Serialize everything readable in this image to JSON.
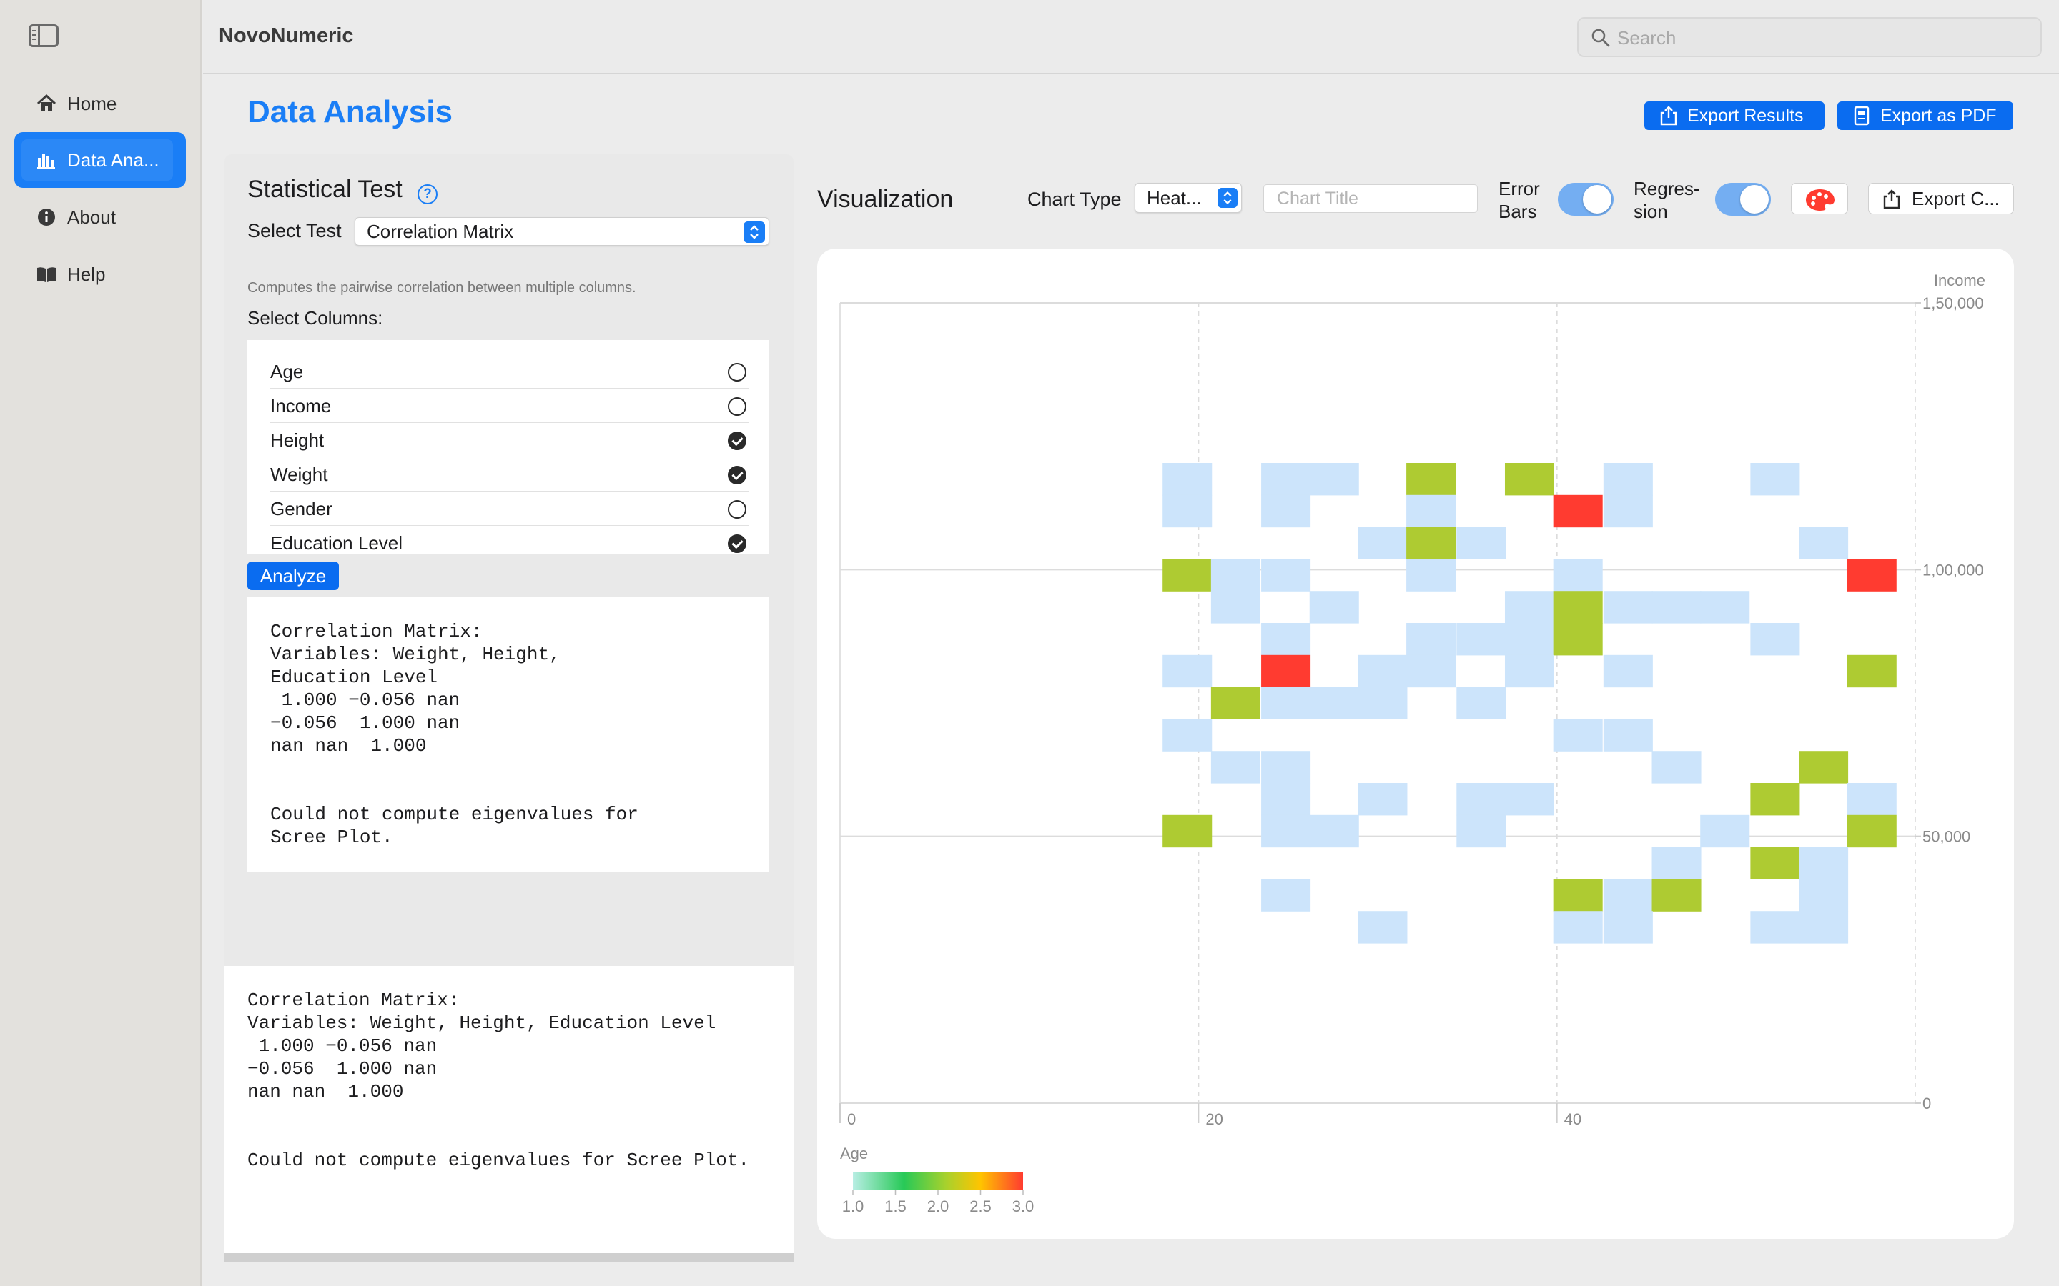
{
  "app": {
    "title": "NovoNumeric"
  },
  "search": {
    "placeholder": "Search"
  },
  "sidebar": {
    "items": [
      {
        "label": "Home",
        "icon": "house-icon"
      },
      {
        "label": "Data Ana...",
        "icon": "bar-chart-icon",
        "active": true
      },
      {
        "label": "About",
        "icon": "info-icon"
      },
      {
        "label": "Help",
        "icon": "book-icon"
      }
    ]
  },
  "header": {
    "title": "Data Analysis",
    "export_results_label": "Export Results",
    "export_pdf_label": "Export as PDF"
  },
  "stat_panel": {
    "heading": "Statistical Test",
    "help_glyph": "?",
    "select_test_label": "Select Test",
    "selected_test": "Correlation Matrix",
    "description": "Computes the pairwise correlation between multiple columns.",
    "select_columns_label": "Select Columns:",
    "columns": [
      {
        "name": "Age",
        "selected": false
      },
      {
        "name": "Income",
        "selected": false
      },
      {
        "name": "Height",
        "selected": true
      },
      {
        "name": "Weight",
        "selected": true
      },
      {
        "name": "Gender",
        "selected": false
      },
      {
        "name": "Education Level",
        "selected": true
      }
    ],
    "analyze_label": "Analyze",
    "result_text": "Correlation Matrix:\nVariables: Weight, Height,\nEducation Level\n 1.000 −0.056 nan\n−0.056  1.000 nan\nnan nan  1.000\n\n\nCould not compute eigenvalues for\nScree Plot.",
    "summary_text": "Correlation Matrix:\nVariables: Weight, Height, Education Level\n 1.000 −0.056 nan\n−0.056  1.000 nan\nnan nan  1.000\n\n\nCould not compute eigenvalues for Scree Plot."
  },
  "viz": {
    "title": "Visualization",
    "chart_type_label": "Chart Type",
    "chart_type_value": "Heat...",
    "chart_title_placeholder": "Chart Title",
    "error_bars_label_1": "Error",
    "error_bars_label_2": "Bars",
    "error_bars_on": true,
    "regression_label_1": "Regres-",
    "regression_label_2": "sion",
    "regression_on": true,
    "export_chart_label": "Export C..."
  },
  "colors": {
    "accent": "#1a7ef6",
    "button_blue": "#0a6cf0",
    "cell_low": "#cce4fb",
    "cell_mid": "#aecb32",
    "cell_high": "#ff3b30"
  },
  "chart_data": {
    "type": "heatmap",
    "title": "",
    "xlabel": "Age",
    "ylabel": "Income",
    "xlim": [
      0,
      60
    ],
    "ylim": [
      0,
      150000
    ],
    "x_ticks": [
      {
        "value": 0,
        "label": "0"
      },
      {
        "value": 20,
        "label": "20"
      },
      {
        "value": 40,
        "label": "40"
      }
    ],
    "y_ticks": [
      {
        "value": 0,
        "label": "0"
      },
      {
        "value": 50000,
        "label": "50,000"
      },
      {
        "value": 100000,
        "label": "1,00,000"
      },
      {
        "value": 150000,
        "label": "1,50,000"
      }
    ],
    "bin_width_x": 2.73,
    "bin_height_y": 6000,
    "colorbar": {
      "min": 1.0,
      "max": 3.0,
      "ticks": [
        "1.0",
        "1.5",
        "2.0",
        "2.5",
        "3.0"
      ]
    },
    "levels": [
      "1",
      "2",
      "3"
    ],
    "cells": [
      {
        "x": 18.0,
        "y": 114000,
        "v": 1
      },
      {
        "x": 23.5,
        "y": 114000,
        "v": 1
      },
      {
        "x": 26.2,
        "y": 114000,
        "v": 1
      },
      {
        "x": 31.6,
        "y": 114000,
        "v": 2
      },
      {
        "x": 37.1,
        "y": 114000,
        "v": 2
      },
      {
        "x": 42.6,
        "y": 114000,
        "v": 1
      },
      {
        "x": 50.8,
        "y": 114000,
        "v": 1
      },
      {
        "x": 18.0,
        "y": 108000,
        "v": 1
      },
      {
        "x": 23.5,
        "y": 108000,
        "v": 1
      },
      {
        "x": 31.6,
        "y": 108000,
        "v": 1
      },
      {
        "x": 39.8,
        "y": 108000,
        "v": 3
      },
      {
        "x": 42.6,
        "y": 108000,
        "v": 1
      },
      {
        "x": 28.9,
        "y": 102000,
        "v": 1
      },
      {
        "x": 31.6,
        "y": 102000,
        "v": 2
      },
      {
        "x": 34.4,
        "y": 102000,
        "v": 1
      },
      {
        "x": 53.5,
        "y": 102000,
        "v": 1
      },
      {
        "x": 18.0,
        "y": 96000,
        "v": 2
      },
      {
        "x": 20.7,
        "y": 96000,
        "v": 1
      },
      {
        "x": 23.5,
        "y": 96000,
        "v": 1
      },
      {
        "x": 31.6,
        "y": 96000,
        "v": 1
      },
      {
        "x": 39.8,
        "y": 96000,
        "v": 1
      },
      {
        "x": 56.2,
        "y": 96000,
        "v": 3
      },
      {
        "x": 20.7,
        "y": 90000,
        "v": 1
      },
      {
        "x": 26.2,
        "y": 90000,
        "v": 1
      },
      {
        "x": 37.1,
        "y": 90000,
        "v": 1
      },
      {
        "x": 39.8,
        "y": 90000,
        "v": 2
      },
      {
        "x": 42.6,
        "y": 90000,
        "v": 1
      },
      {
        "x": 45.3,
        "y": 90000,
        "v": 1
      },
      {
        "x": 48.0,
        "y": 90000,
        "v": 1
      },
      {
        "x": 23.5,
        "y": 84000,
        "v": 1
      },
      {
        "x": 31.6,
        "y": 84000,
        "v": 1
      },
      {
        "x": 34.4,
        "y": 84000,
        "v": 1
      },
      {
        "x": 37.1,
        "y": 84000,
        "v": 1
      },
      {
        "x": 39.8,
        "y": 84000,
        "v": 2
      },
      {
        "x": 50.8,
        "y": 84000,
        "v": 1
      },
      {
        "x": 18.0,
        "y": 78000,
        "v": 1
      },
      {
        "x": 23.5,
        "y": 78000,
        "v": 3
      },
      {
        "x": 28.9,
        "y": 78000,
        "v": 1
      },
      {
        "x": 31.6,
        "y": 78000,
        "v": 1
      },
      {
        "x": 37.1,
        "y": 78000,
        "v": 1
      },
      {
        "x": 42.6,
        "y": 78000,
        "v": 1
      },
      {
        "x": 56.2,
        "y": 78000,
        "v": 2
      },
      {
        "x": 20.7,
        "y": 72000,
        "v": 2
      },
      {
        "x": 23.5,
        "y": 72000,
        "v": 1
      },
      {
        "x": 26.2,
        "y": 72000,
        "v": 1
      },
      {
        "x": 28.9,
        "y": 72000,
        "v": 1
      },
      {
        "x": 34.4,
        "y": 72000,
        "v": 1
      },
      {
        "x": 18.0,
        "y": 66000,
        "v": 1
      },
      {
        "x": 39.8,
        "y": 66000,
        "v": 1
      },
      {
        "x": 42.6,
        "y": 66000,
        "v": 1
      },
      {
        "x": 20.7,
        "y": 60000,
        "v": 1
      },
      {
        "x": 23.5,
        "y": 60000,
        "v": 1
      },
      {
        "x": 45.3,
        "y": 60000,
        "v": 1
      },
      {
        "x": 53.5,
        "y": 60000,
        "v": 2
      },
      {
        "x": 23.5,
        "y": 54000,
        "v": 1
      },
      {
        "x": 28.9,
        "y": 54000,
        "v": 1
      },
      {
        "x": 34.4,
        "y": 54000,
        "v": 1
      },
      {
        "x": 37.1,
        "y": 54000,
        "v": 1
      },
      {
        "x": 50.8,
        "y": 54000,
        "v": 2
      },
      {
        "x": 56.2,
        "y": 54000,
        "v": 1
      },
      {
        "x": 18.0,
        "y": 48000,
        "v": 2
      },
      {
        "x": 23.5,
        "y": 48000,
        "v": 1
      },
      {
        "x": 26.2,
        "y": 48000,
        "v": 1
      },
      {
        "x": 34.4,
        "y": 48000,
        "v": 1
      },
      {
        "x": 48.0,
        "y": 48000,
        "v": 1
      },
      {
        "x": 56.2,
        "y": 48000,
        "v": 2
      },
      {
        "x": 45.3,
        "y": 42000,
        "v": 1
      },
      {
        "x": 50.8,
        "y": 42000,
        "v": 2
      },
      {
        "x": 53.5,
        "y": 42000,
        "v": 1
      },
      {
        "x": 23.5,
        "y": 36000,
        "v": 1
      },
      {
        "x": 39.8,
        "y": 36000,
        "v": 2
      },
      {
        "x": 42.6,
        "y": 36000,
        "v": 1
      },
      {
        "x": 45.3,
        "y": 36000,
        "v": 2
      },
      {
        "x": 53.5,
        "y": 36000,
        "v": 1
      },
      {
        "x": 28.9,
        "y": 30000,
        "v": 1
      },
      {
        "x": 39.8,
        "y": 30000,
        "v": 1
      },
      {
        "x": 42.6,
        "y": 30000,
        "v": 1
      },
      {
        "x": 50.8,
        "y": 30000,
        "v": 1
      },
      {
        "x": 53.5,
        "y": 30000,
        "v": 1
      }
    ]
  }
}
